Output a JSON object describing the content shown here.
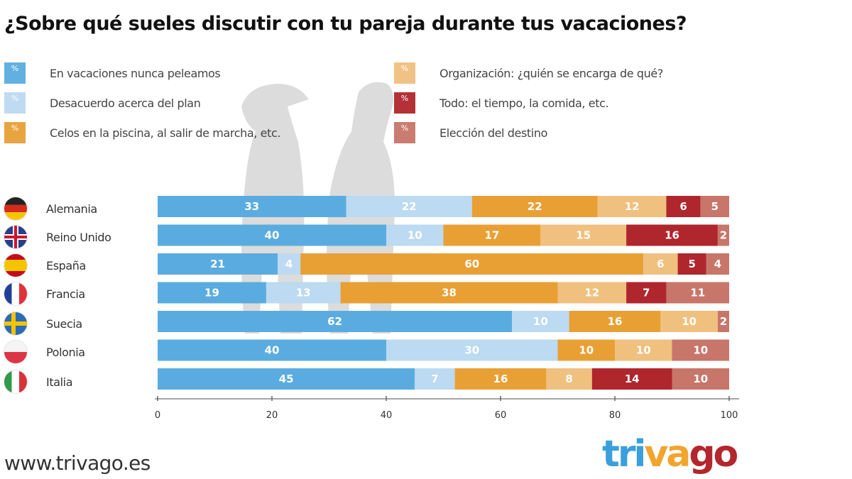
{
  "title": "¿Sobre qué sueles discutir con tu pareja durante tus vacaciones?",
  "legend": {
    "swatch_text": "%",
    "items": [
      {
        "label": "En vacaciones nunca peleamos",
        "color": "#5aace0"
      },
      {
        "label": "Desacuerdo acerca del plan",
        "color": "#bcdaf1"
      },
      {
        "label": "Celos en la piscina, al salir de marcha, etc.",
        "color": "#e8a035"
      },
      {
        "label": "Organización: ¿quién se encarga de qué?",
        "color": "#f0c07e"
      },
      {
        "label": "Todo: el tiempo, la comida, etc.",
        "color": "#b0262d"
      },
      {
        "label": "Elección del destino",
        "color": "#c8766a"
      }
    ]
  },
  "countries": [
    {
      "name": "Alemania",
      "flag": "germany-flag"
    },
    {
      "name": "Reino Unido",
      "flag": "uk-flag"
    },
    {
      "name": "España",
      "flag": "spain-flag"
    },
    {
      "name": "Francia",
      "flag": "france-flag"
    },
    {
      "name": "Suecia",
      "flag": "sweden-flag"
    },
    {
      "name": "Polonia",
      "flag": "poland-flag"
    },
    {
      "name": "Italia",
      "flag": "italy-flag"
    }
  ],
  "footer": {
    "url": "www.trivago.es",
    "logo_parts": [
      "tri",
      "va",
      "go"
    ]
  },
  "chart_data": {
    "type": "bar",
    "orientation": "horizontal",
    "stacked": true,
    "title": "¿Sobre qué sueles discutir con tu pareja durante tus vacaciones?",
    "xlabel": "",
    "ylabel": "",
    "xlim": [
      0,
      100
    ],
    "xticks": [
      0,
      20,
      40,
      60,
      80,
      100
    ],
    "grid": false,
    "legend_position": "top",
    "categories": [
      "Alemania",
      "Reino Unido",
      "España",
      "Francia",
      "Suecia",
      "Polonia",
      "Italia"
    ],
    "series": [
      {
        "name": "En vacaciones nunca peleamos",
        "color": "#5aace0",
        "values": [
          33,
          40,
          21,
          19,
          62,
          40,
          45
        ]
      },
      {
        "name": "Desacuerdo acerca del plan",
        "color": "#bcdaf1",
        "values": [
          22,
          10,
          4,
          13,
          10,
          30,
          7
        ]
      },
      {
        "name": "Celos en la piscina, al salir de marcha, etc.",
        "color": "#e8a035",
        "values": [
          22,
          17,
          60,
          38,
          16,
          10,
          16
        ]
      },
      {
        "name": "Organización: ¿quién se encarga de qué?",
        "color": "#f0c07e",
        "values": [
          12,
          15,
          6,
          12,
          10,
          10,
          8
        ]
      },
      {
        "name": "Todo: el tiempo, la comida, etc.",
        "color": "#b0262d",
        "values": [
          6,
          16,
          5,
          7,
          0,
          0,
          14
        ]
      },
      {
        "name": "Elección del destino",
        "color": "#c8766a",
        "values": [
          5,
          2,
          4,
          11,
          2,
          10,
          10
        ]
      }
    ]
  }
}
